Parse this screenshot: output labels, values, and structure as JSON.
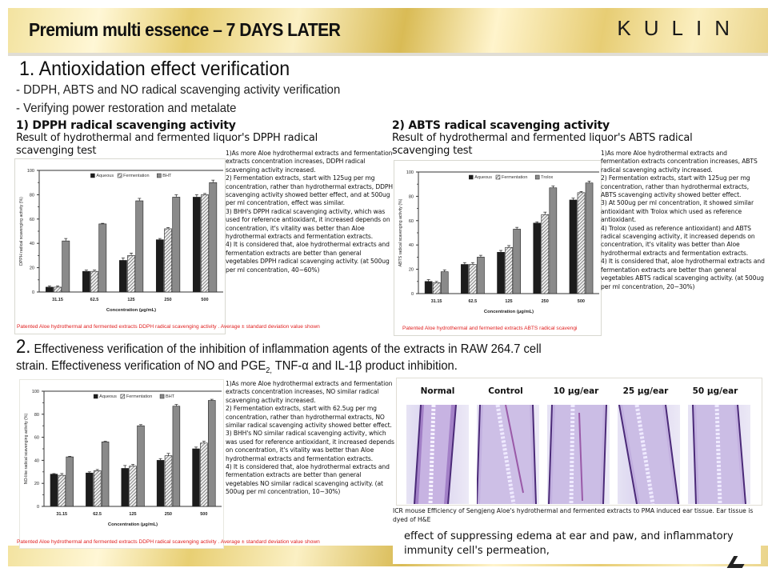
{
  "header": {
    "title": "Premium multi essence – 7 DAYS LATER",
    "brand": "KULIN"
  },
  "section1": {
    "heading": "1. Antioxidation effect verification",
    "bullets": [
      "- DDPH,  ABTS and NO radical  scavenging  activity  verification",
      "- Verifying  power restoration  and metalate"
    ]
  },
  "dpph": {
    "heading": "1) DPPH radical scavenging activity",
    "desc": "Result of hydrothermal  and fermented  liquor's  DPPH radical scavenging  test",
    "notes": "1)As more Aloe hydrothermal extracts and fermentation extracts concentration increases, DDPH radical scavenging activity increased.\n2) Fermentation extracts, start with 125ug per mg concentration,  rather than hydrothermal extracts, DDPH scavenging activity showed better effect, and at 500ug per ml concentration,  effect was similar.\n3) BHH's DPPH radical scavenging activity, which was used for reference antioxidant, it increased depends on concentration,  it's vitality was better than Aloe hydrothermal extracts and fermentation extracts.\n4) It is considered  that, aloe hydrothermal extracts and fermentation extracts are better than general vegetables  DPPH radical scavenging activity. (at 500ug per ml concentration,  40~60%)",
    "caption": "Patented Aloe hydrothermal and fermented extracts DDPH radical scavenging activity . Average ± standard deviation value shown"
  },
  "abts": {
    "heading": "2) ABTS  radical scavenging activity",
    "desc": "Result of hydrothermal  and fermented  liquor's  ABTS radical scavenging  test",
    "notes": "1)As more Aloe hydrothermal extracts and fermentation extracts concentration increases, ABTS radical scavenging activity increased.\n2) Fermentation extracts, start with 125ug per mg concentration,  rather than hydrothermal extracts, ABTS scavenging activity showed better effect.\n3) At 500ug per ml concentration,  it showed similar antioxidant  with Trolox which used as reference antioxidant.\n4) Trolox (used as reference antioxidant) and ABTS radical scavenging activity, it increased depends on concentration,  it's vitality was better than Aloe hydrothermal extracts and fermentation extracts.\n4) It is considered  that, aloe hydrothermal extracts and fermentation extracts are better than general vegetables ABTS radical scavenging activity. (at 500ug per ml concentration,  20~30%)",
    "caption": "Patented Aloe hydrothermal and fermented extracts ABTS radical scavengi"
  },
  "section2": {
    "num": "2.",
    "line1": " Effectiveness  verification  of  the  inhibition  of  inflammation  agents  of  the  extracts  in  RAW  264.7  cell",
    "line2a": "strain.  Effectiveness verification  of NO and PGE",
    "line2sub": "2,",
    "line2b": " TNF-α  and IL-1β   product inhibition."
  },
  "no": {
    "notes": "1)As more Aloe hydrothermal extracts and fermentation extracts concentration increases, NO similar radical scavenging activity increased.\n2) Fermentation extracts, start with 62.5ug per mg concentration,  rather than hydrothermal extracts, NO similar radical scavenging activity showed better effect.\n3) BHH's NO similar radical scavenging activity, which was used for reference antioxidant, it increased depends on concentration,  it's vitality was better than Aloe hydrothermal extracts and fermentation extracts.\n4) It is considered  that, aloe hydrothermal extracts and fermentation extracts are better than general vegetables NO similar radical scavenging activity. (at 500ug per ml concentration,  10~30%)",
    "caption": "Patented Aloe hydrothermal and fermented extracts DDPH radical scavenging activity . Average ± standard deviation value shown"
  },
  "histology": {
    "labels": [
      "Normal",
      "Control",
      "10 μg/ear",
      "25 μg/ear",
      "50 μg/ear"
    ],
    "caption": "ICR mouse Efficiency of Sengjeng Aloe's hydrothermal  and fermented extracts to PMA induced  ear tissue. Ear tissue is dyed of H&E",
    "effect": "effect  of suppressing edema at ear and paw, and inflammatory immunity  cell's permeation,"
  },
  "colors": {
    "aqueous": "#1c1c1c",
    "fermentation": "#bdbdbd",
    "reference": "#8a8a8a",
    "caption_red": "#e02020"
  },
  "chart_data": [
    {
      "type": "bar",
      "title": "",
      "xlabel": "Concentration (μg/mL)",
      "ylabel": "DPPH radical scavenging activity (%)",
      "ylim": [
        0,
        100
      ],
      "yticks": [
        "0",
        "20",
        "40",
        "60",
        "80",
        "100"
      ],
      "categories": [
        "31.15",
        "62.5",
        "125",
        "250",
        "500"
      ],
      "legend": "top-center",
      "series": [
        {
          "name": "Aqueous",
          "values": [
            4,
            17,
            26,
            43,
            78
          ],
          "errors": [
            1,
            1,
            2,
            1,
            2
          ]
        },
        {
          "name": "Fermentation",
          "values": [
            4,
            17,
            30,
            52,
            80
          ],
          "errors": [
            1,
            1,
            2,
            1,
            1
          ]
        },
        {
          "name": "BHT",
          "values": [
            42,
            56,
            75,
            78,
            90
          ],
          "errors": [
            2,
            0.5,
            2,
            2,
            2
          ]
        }
      ]
    },
    {
      "type": "bar",
      "title": "",
      "xlabel": "Concentration (μg/mL)",
      "ylabel": "ABTS radical scavenging activity (%)",
      "ylim": [
        0,
        100
      ],
      "yticks": [
        "0",
        "20",
        "40",
        "60",
        "80",
        "100"
      ],
      "categories": [
        "31.15",
        "62.5",
        "125",
        "250",
        "500"
      ],
      "legend": "top-center",
      "series": [
        {
          "name": "Aqueous",
          "values": [
            10,
            24,
            34,
            58,
            77
          ],
          "errors": [
            1.5,
            1.5,
            1.5,
            1,
            1.5
          ]
        },
        {
          "name": "Fermentation",
          "values": [
            9,
            24,
            38,
            65,
            83
          ],
          "errors": [
            1,
            1.5,
            1.5,
            2,
            1
          ]
        },
        {
          "name": "Trolox",
          "values": [
            18,
            30,
            53,
            87,
            91
          ],
          "errors": [
            1.5,
            1.5,
            1.5,
            1.5,
            1.5
          ]
        }
      ]
    },
    {
      "type": "bar",
      "title": "",
      "xlabel": "Concentration (μg/mL)",
      "ylabel": "NO-like radical scavenging activity (%)",
      "ylim": [
        0,
        100
      ],
      "yticks": [
        "0",
        "20",
        "40",
        "60",
        "80",
        "100"
      ],
      "categories": [
        "31.15",
        "62.5",
        "125",
        "250",
        "500"
      ],
      "legend": "top-center",
      "series": [
        {
          "name": "Aqueous",
          "values": [
            28,
            29,
            33,
            40,
            50
          ],
          "errors": [
            0.5,
            1,
            2.5,
            1.5,
            1.5
          ]
        },
        {
          "name": "Fermentation",
          "values": [
            27,
            31,
            35,
            44,
            55
          ],
          "errors": [
            1.5,
            1,
            1.5,
            2,
            1.5
          ]
        },
        {
          "name": "BHT",
          "values": [
            43,
            56,
            70,
            87,
            92
          ],
          "errors": [
            0.5,
            0.5,
            1,
            1.5,
            1
          ]
        }
      ]
    }
  ]
}
